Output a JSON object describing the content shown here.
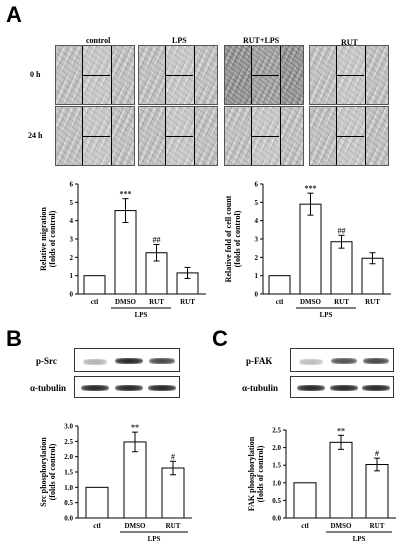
{
  "panels": {
    "a": "A",
    "b": "B",
    "c": "C"
  },
  "wound_healing": {
    "columns": [
      "control",
      "LPS",
      "RUT+LPS",
      "RUT"
    ],
    "rows": [
      "0 h",
      "24 h"
    ]
  },
  "blots": {
    "b": {
      "target": "p-Src",
      "loading": "α-tubulin"
    },
    "c": {
      "target": "p-FAK",
      "loading": "α-tubulin"
    }
  },
  "chart_data": [
    {
      "type": "bar",
      "panel": "A",
      "categories": [
        "ctl",
        "DMSO",
        "RUT",
        "RUT"
      ],
      "group_label": "LPS",
      "values": [
        1.0,
        4.55,
        2.25,
        1.15
      ],
      "errors": [
        0,
        0.65,
        0.45,
        0.3
      ],
      "significance": [
        "",
        "***",
        "##",
        ""
      ],
      "ylabel": [
        "Relative migration",
        "(folds of control)"
      ],
      "yticks": [
        "0",
        "1",
        "2",
        "3",
        "4",
        "5",
        "6"
      ],
      "ylim": [
        0,
        6
      ]
    },
    {
      "type": "bar",
      "panel": "A",
      "categories": [
        "ctl",
        "DMSO",
        "RUT",
        "RUT"
      ],
      "group_label": "LPS",
      "values": [
        1.0,
        4.9,
        2.85,
        1.95
      ],
      "errors": [
        0,
        0.6,
        0.35,
        0.3
      ],
      "significance": [
        "",
        "***",
        "##",
        ""
      ],
      "ylabel": [
        "Relative fold of cell count",
        "(folds of control)"
      ],
      "yticks": [
        "0",
        "1",
        "2",
        "3",
        "4",
        "5",
        "6"
      ],
      "ylim": [
        0,
        6
      ]
    },
    {
      "type": "bar",
      "panel": "B",
      "categories": [
        "ctl",
        "DMSO",
        "RUT"
      ],
      "group_label": "LPS",
      "values": [
        1.0,
        2.48,
        1.63
      ],
      "errors": [
        0,
        0.32,
        0.22
      ],
      "significance": [
        "",
        "**",
        "#"
      ],
      "ylabel": [
        "Src phosphorylation",
        "(folds of control)"
      ],
      "yticks": [
        "0.0",
        "0.5",
        "1.0",
        "1.5",
        "2.0",
        "2.5",
        "3.0"
      ],
      "ylim": [
        0,
        3.0
      ]
    },
    {
      "type": "bar",
      "panel": "C",
      "categories": [
        "ctl",
        "DMSO",
        "RUT"
      ],
      "group_label": "LPS",
      "values": [
        1.0,
        2.15,
        1.52
      ],
      "errors": [
        0,
        0.2,
        0.18
      ],
      "significance": [
        "",
        "**",
        "#"
      ],
      "ylabel": [
        "FAK phosphorylation",
        "(folds of control)"
      ],
      "yticks": [
        "0.0",
        "0.5",
        "1.0",
        "1.5",
        "2.0",
        "2.5"
      ],
      "ylim": [
        0,
        2.5
      ]
    }
  ]
}
